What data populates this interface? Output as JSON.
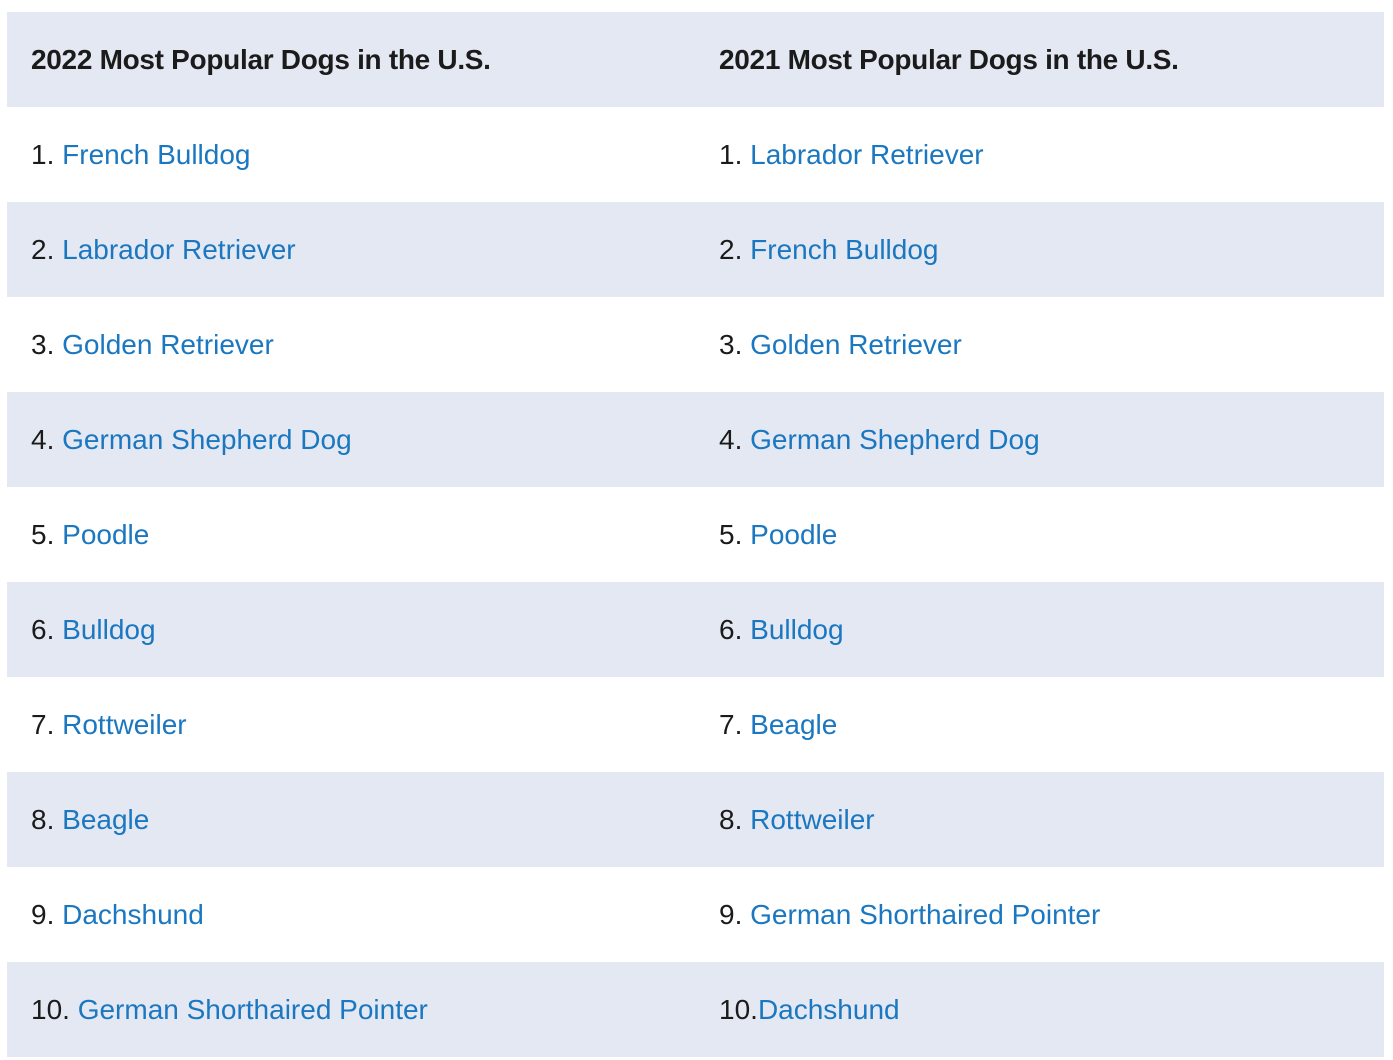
{
  "headers": [
    "2022 Most Popular Dogs in the U.S.",
    "2021 Most Popular Dogs in the U.S."
  ],
  "colors": {
    "shaded_row": "#e4e8f3",
    "link": "#1a77c0",
    "text": "#1b1b1b"
  },
  "rows": [
    {
      "left": {
        "num": "1. ",
        "breed": "French Bulldog"
      },
      "right": {
        "num": "1. ",
        "breed": "Labrador Retriever"
      }
    },
    {
      "left": {
        "num": "2. ",
        "breed": "Labrador Retriever"
      },
      "right": {
        "num": "2. ",
        "breed": "French Bulldog"
      }
    },
    {
      "left": {
        "num": "3. ",
        "breed": "Golden Retriever"
      },
      "right": {
        "num": "3. ",
        "breed": "Golden Retriever"
      }
    },
    {
      "left": {
        "num": "4. ",
        "breed": "German Shepherd Dog"
      },
      "right": {
        "num": "4. ",
        "breed": "German Shepherd Dog"
      }
    },
    {
      "left": {
        "num": "5. ",
        "breed": "Poodle"
      },
      "right": {
        "num": "5. ",
        "breed": "Poodle"
      }
    },
    {
      "left": {
        "num": "6. ",
        "breed": "Bulldog"
      },
      "right": {
        "num": "6. ",
        "breed": "Bulldog"
      }
    },
    {
      "left": {
        "num": "7. ",
        "breed": "Rottweiler"
      },
      "right": {
        "num": "7. ",
        "breed": "Beagle"
      }
    },
    {
      "left": {
        "num": "8. ",
        "breed": "Beagle"
      },
      "right": {
        "num": "8. ",
        "breed": "Rottweiler"
      }
    },
    {
      "left": {
        "num": "9. ",
        "breed": "Dachshund"
      },
      "right": {
        "num": "9. ",
        "breed": "German Shorthaired Pointer"
      }
    },
    {
      "left": {
        "num": "10. ",
        "breed": "German Shorthaired Pointer"
      },
      "right": {
        "num": "10.",
        "breed": "Dachshund"
      }
    }
  ]
}
